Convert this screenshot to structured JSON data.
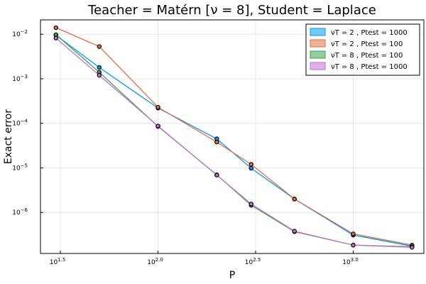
{
  "chart_data": {
    "type": "line",
    "title": "Teacher = Matérn [ν = 8], Student = Laplace",
    "xlabel": "P",
    "ylabel": "Exact error",
    "xscale": "log10",
    "yscale": "log10",
    "xlim": [
      25,
      2300
    ],
    "ylim": [
      1.2e-07,
      0.021
    ],
    "grid": true,
    "legend_position": "top-right",
    "x_ticks": [
      {
        "value": 31.62,
        "label": "10",
        "exp": "1.5"
      },
      {
        "value": 100,
        "label": "10",
        "exp": "2.0"
      },
      {
        "value": 316.2,
        "label": "10",
        "exp": "2.5"
      },
      {
        "value": 1000,
        "label": "10",
        "exp": "3.0"
      }
    ],
    "y_ticks": [
      {
        "value": 1e-06,
        "label": "10",
        "exp": "−6"
      },
      {
        "value": 1e-05,
        "label": "10",
        "exp": "−5"
      },
      {
        "value": 0.0001,
        "label": "10",
        "exp": "−4"
      },
      {
        "value": 0.001,
        "label": "10",
        "exp": "−3"
      },
      {
        "value": 0.01,
        "label": "10",
        "exp": "−2"
      }
    ],
    "series": [
      {
        "name": "νT = 2 , Ptest = 1000",
        "color": "#009AFA",
        "x": [
          30,
          50,
          100,
          200,
          300,
          500,
          1000,
          2000
        ],
        "y": [
          0.0095,
          0.0018,
          0.00022,
          4.5e-05,
          9.8e-06,
          2e-06,
          3.1e-07,
          1.75e-07
        ]
      },
      {
        "name": "νT = 2 , Ptest = 100",
        "color": "#E26F46",
        "x": [
          30,
          50,
          100,
          200,
          300,
          500,
          1000,
          2000
        ],
        "y": [
          0.014,
          0.0053,
          0.00023,
          3.8e-05,
          1.2e-05,
          2e-06,
          3.3e-07,
          1.85e-07
        ]
      },
      {
        "name": "νT = 8 , Ptest = 100",
        "color": "#3DA44D",
        "x": [
          30,
          50,
          100,
          200,
          300,
          500,
          1000,
          2000
        ],
        "y": [
          0.0098,
          0.0014,
          8.5e-05,
          7e-06,
          1.45e-06,
          3.7e-07,
          1.85e-07,
          1.7e-07
        ]
      },
      {
        "name": "νT = 8 , Ptest = 1000",
        "color": "#C271D2",
        "x": [
          30,
          50,
          100,
          200,
          300,
          500,
          1000,
          2000
        ],
        "y": [
          0.0082,
          0.0012,
          8.7e-05,
          6.9e-06,
          1.55e-06,
          3.8e-07,
          1.85e-07,
          1.65e-07
        ]
      }
    ]
  }
}
